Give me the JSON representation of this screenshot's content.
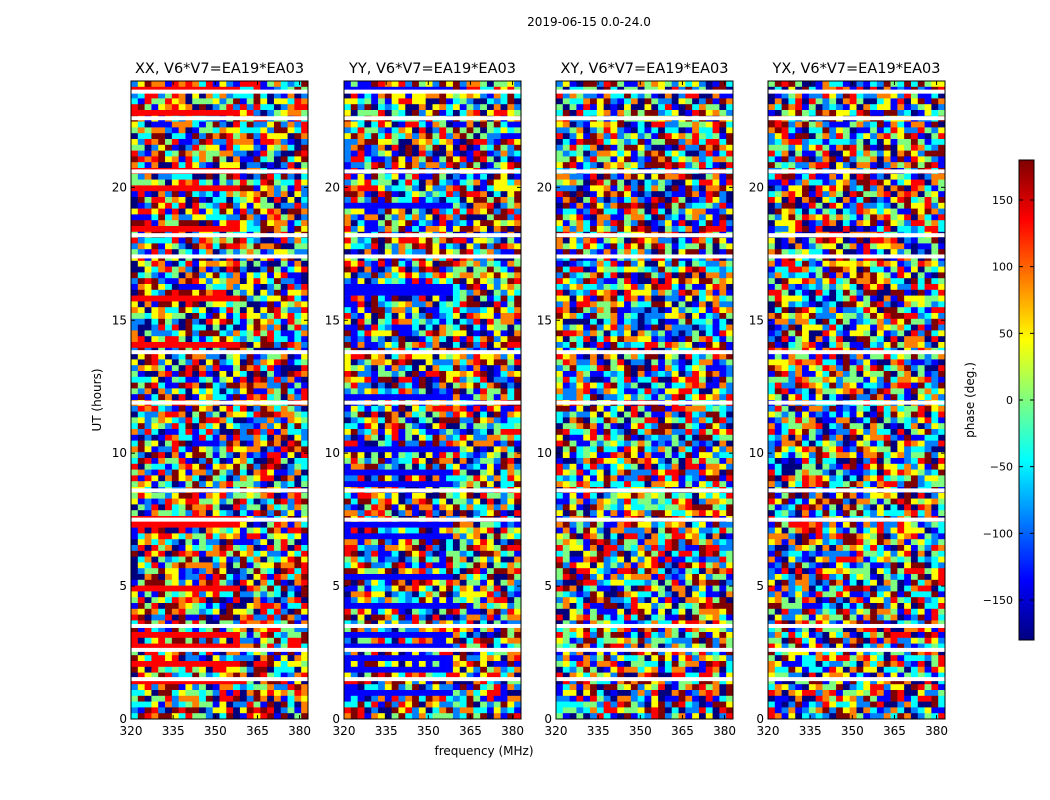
{
  "figure": {
    "suptitle": "2019-06-15 0.0-24.0"
  },
  "chart_data": [
    {
      "type": "heatmap",
      "title": "XX, V6*V7=EA19*EA03",
      "xlabel": "",
      "ylabel": "UT (hours)",
      "xlim": [
        320,
        383
      ],
      "ylim": [
        0,
        24
      ],
      "xticks": [
        320,
        335,
        350,
        365,
        380
      ],
      "yticks": [
        0,
        5,
        10,
        15,
        20
      ]
    },
    {
      "type": "heatmap",
      "title": "YY, V6*V7=EA19*EA03",
      "xlabel": "frequency (MHz)",
      "ylabel": "",
      "xlim": [
        320,
        383
      ],
      "ylim": [
        0,
        24
      ],
      "xticks": [
        320,
        335,
        350,
        365,
        380
      ],
      "yticks": [
        0,
        5,
        10,
        15,
        20
      ]
    },
    {
      "type": "heatmap",
      "title": "XY, V6*V7=EA19*EA03",
      "xlabel": "",
      "ylabel": "",
      "xlim": [
        320,
        383
      ],
      "ylim": [
        0,
        24
      ],
      "xticks": [
        320,
        335,
        350,
        365,
        380
      ],
      "yticks": [
        0,
        5,
        10,
        15,
        20
      ]
    },
    {
      "type": "heatmap",
      "title": "YX, V6*V7=EA19*EA03",
      "xlabel": "",
      "ylabel": "",
      "xlim": [
        320,
        383
      ],
      "ylim": [
        0,
        24
      ],
      "xticks": [
        320,
        335,
        350,
        365,
        380
      ],
      "yticks": [
        0,
        5,
        10,
        15,
        20
      ]
    }
  ],
  "flagged_gaps_ut": [
    23.6,
    22.6,
    20.6,
    18.2,
    17.4,
    13.8,
    11.9,
    8.6,
    7.5,
    3.5,
    2.6,
    1.5
  ],
  "colorbar": {
    "label": "phase (deg.)",
    "range": [
      -180,
      180
    ],
    "ticks": [
      150,
      100,
      50,
      0,
      -50,
      -100,
      -150
    ],
    "tick_labels": [
      "150",
      "100",
      "50",
      "0",
      "−50",
      "−100",
      "−150"
    ],
    "colormap": "jet",
    "colors": [
      "#00007f",
      "#0000ff",
      "#007fff",
      "#00ffff",
      "#7fff7f",
      "#ffff00",
      "#ff7f00",
      "#ff0000",
      "#7f0000"
    ]
  }
}
